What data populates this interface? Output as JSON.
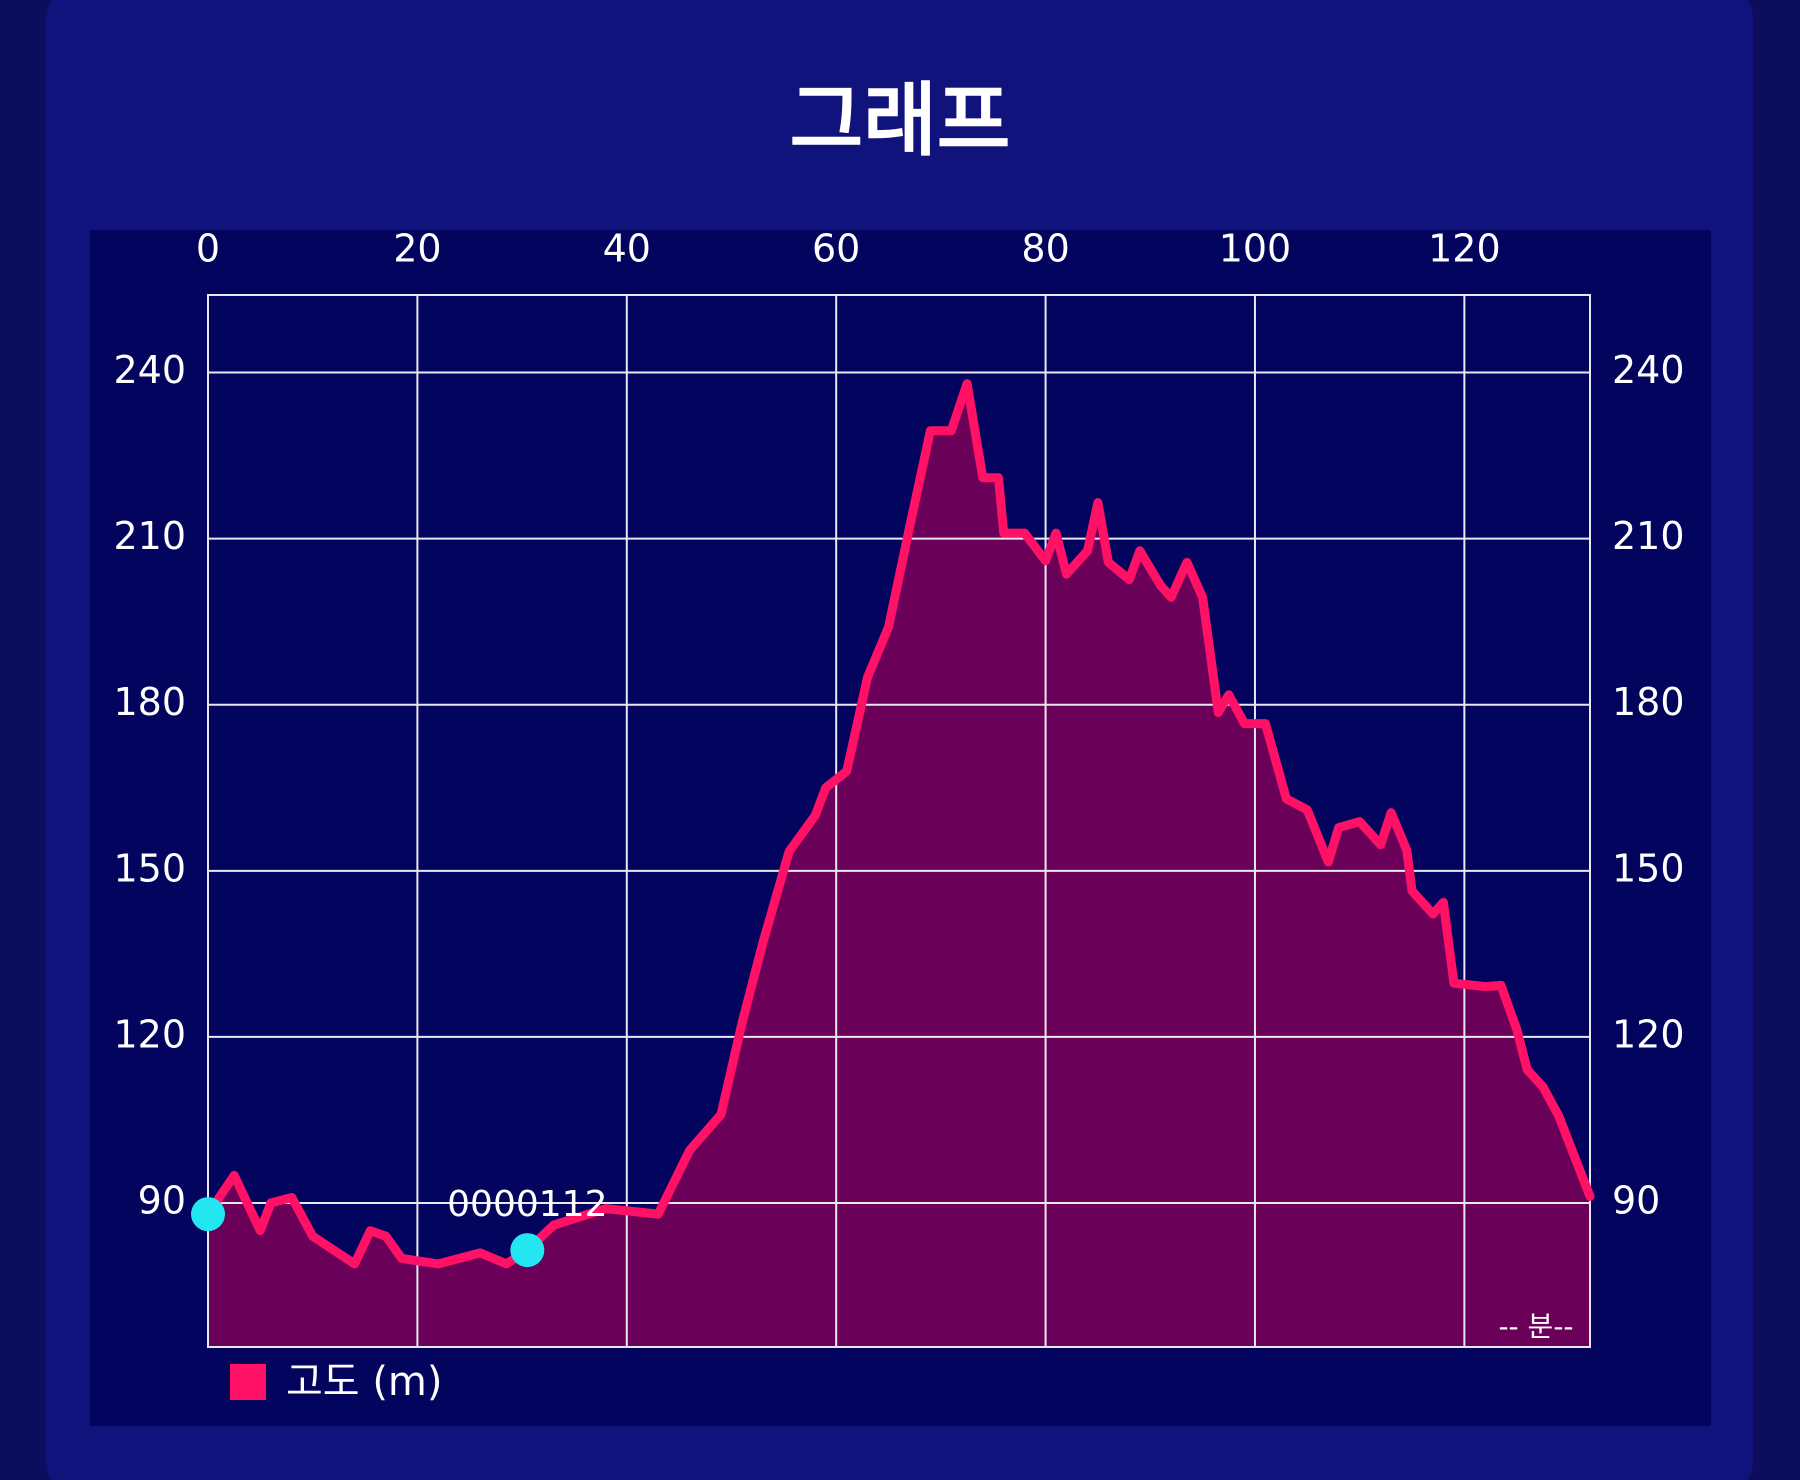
{
  "chart_data": {
    "type": "area",
    "title": "그래프",
    "x_label": "-- 분--",
    "x": [
      0,
      2.5,
      5,
      6,
      8,
      10,
      14,
      15.5,
      17,
      18.5,
      22,
      26,
      28.5,
      30.5,
      33,
      38,
      43,
      46,
      49,
      51,
      53,
      55.5,
      58,
      59,
      61,
      63,
      65,
      67,
      69,
      71,
      72.5,
      74,
      75.5,
      76,
      78,
      80,
      81,
      82,
      84,
      85,
      86,
      88,
      89,
      91,
      92,
      93.5,
      95,
      96.5,
      97.5,
      99,
      101,
      103,
      105,
      107,
      108,
      110,
      112,
      113,
      114.5,
      115,
      117,
      118,
      119,
      122,
      123.5,
      125,
      126,
      127.5,
      129,
      130.5,
      132
    ],
    "series": [
      {
        "name": "고도 (m)",
        "color": "#ff1166",
        "fill": "#6a0057",
        "values": [
          88,
          95,
          85,
          90,
          91,
          84,
          79,
          85,
          84,
          80,
          79,
          81,
          79,
          81.5,
          86,
          89,
          88,
          99.5,
          106,
          122.5,
          137,
          153.5,
          160,
          165,
          168,
          185,
          194,
          212,
          229.5,
          229.5,
          238,
          221,
          221,
          211,
          211,
          206,
          211,
          203.6,
          207.8,
          216.5,
          205.7,
          202.6,
          207.8,
          201.5,
          199.4,
          205.7,
          199.4,
          178.6,
          181.8,
          176.6,
          176.6,
          163,
          161,
          151.6,
          157.8,
          158.9,
          154.7,
          160.5,
          153.7,
          146.4,
          142.2,
          144.3,
          129.7,
          129.1,
          129.3,
          121.4,
          114.1,
          111,
          105.8,
          98.5,
          91.2
        ]
      }
    ],
    "markers": [
      {
        "x": 0,
        "y": 88
      },
      {
        "x": 30.5,
        "y": 81.5,
        "label": "0000112"
      }
    ],
    "marker_color": "#22e6f0",
    "xlim": [
      0,
      132
    ],
    "xticks": [
      0,
      20,
      40,
      60,
      80,
      100,
      120
    ],
    "ylim": [
      64,
      254
    ],
    "yticks": [
      90,
      120,
      150,
      180,
      210,
      240
    ],
    "grid": true,
    "legend": "bottom-left"
  }
}
